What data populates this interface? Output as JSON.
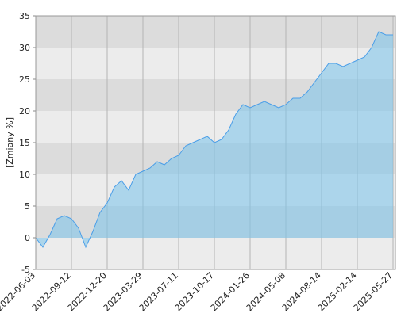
{
  "chart_data": {
    "type": "area",
    "y_label": "[Zmiany %]",
    "x": [
      "2022-06-03",
      null,
      null,
      null,
      null,
      "2022-09-12",
      null,
      null,
      null,
      null,
      "2022-12-20",
      null,
      null,
      null,
      null,
      "2023-03-29",
      null,
      null,
      null,
      null,
      "2023-07-11",
      null,
      null,
      null,
      null,
      "2023-10-17",
      null,
      null,
      null,
      null,
      "2024-01-26",
      null,
      null,
      null,
      null,
      "2024-05-08",
      null,
      null,
      null,
      null,
      "2024-08-14",
      null,
      null,
      null,
      null,
      "2025-02-14",
      null,
      null,
      null,
      null,
      "2025-05-27"
    ],
    "series": [
      {
        "color": "#4a9ee8",
        "values": [
          0,
          -1.5,
          0.5,
          3,
          3.5,
          3,
          1.5,
          -1.5,
          1,
          4,
          5.5,
          8,
          9,
          7.5,
          10,
          10.5,
          11,
          12,
          11.5,
          12.5,
          13,
          14.5,
          15,
          15.5,
          16,
          15,
          15.5,
          17,
          19.5,
          21,
          20.5,
          21,
          21.5,
          21,
          20.5,
          21,
          22,
          22,
          23,
          24.5,
          26,
          27.5,
          27.5,
          27,
          27.5,
          28,
          28.5,
          30,
          32.5,
          32,
          32
        ]
      }
    ],
    "ylim": [
      -5,
      35
    ],
    "yticks": [
      -5,
      0,
      5,
      10,
      15,
      20,
      25,
      30,
      35
    ],
    "grid": true
  }
}
